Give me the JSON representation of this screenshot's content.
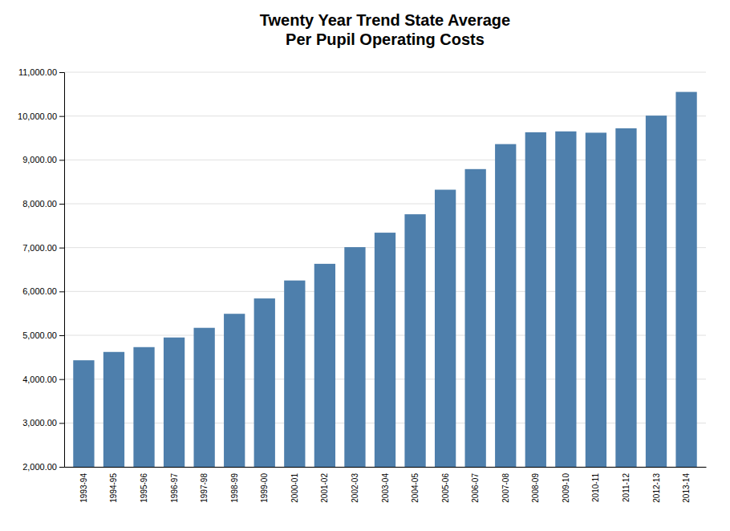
{
  "chart_data": {
    "type": "bar",
    "title": "Twenty Year Trend State Average\nPer Pupil Operating Costs",
    "categories": [
      "1993-94",
      "1994-95",
      "1995-96",
      "1996-97",
      "1997-98",
      "1998-99",
      "1999-00",
      "2000-01",
      "2001-02",
      "2002-03",
      "2003-04",
      "2004-05",
      "2005-06",
      "2006-07",
      "2007-08",
      "2008-09",
      "2009-10",
      "2010-11",
      "2011-12",
      "2012-13",
      "2013-14"
    ],
    "values": [
      4430,
      4620,
      4730,
      4950,
      5170,
      5490,
      5840,
      6250,
      6630,
      7010,
      7340,
      7760,
      8320,
      8790,
      9360,
      9630,
      9650,
      9620,
      9720,
      10010,
      10550
    ],
    "color": "#4e7fac",
    "ylim": [
      2000,
      11000
    ],
    "yticks": [
      {
        "value": 2000,
        "label": "2,000.00"
      },
      {
        "value": 3000,
        "label": "3,000.00"
      },
      {
        "value": 4000,
        "label": "4,000.00"
      },
      {
        "value": 5000,
        "label": "5,000.00"
      },
      {
        "value": 6000,
        "label": "6,000.00"
      },
      {
        "value": 7000,
        "label": "7,000.00"
      },
      {
        "value": 8000,
        "label": "8,000.00"
      },
      {
        "value": 9000,
        "label": "9,000.00"
      },
      {
        "value": 10000,
        "label": "10,000.00"
      },
      {
        "value": 11000,
        "label": "11,000.00"
      }
    ],
    "grid": true
  }
}
